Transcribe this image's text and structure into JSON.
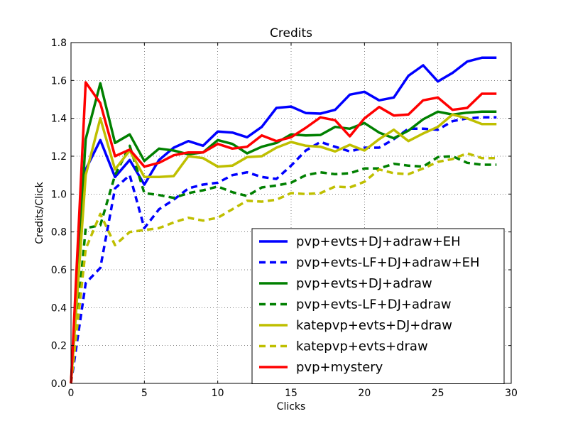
{
  "chart_data": {
    "type": "line",
    "title": "Credits",
    "xlabel": "Clicks",
    "ylabel": "Credits/Click",
    "xlim": [
      0,
      30
    ],
    "ylim": [
      0,
      1.8
    ],
    "xticks": [
      "0",
      "5",
      "10",
      "15",
      "20",
      "25",
      "30"
    ],
    "yticks": [
      "0.0",
      "0.2",
      "0.4",
      "0.6",
      "0.8",
      "1.0",
      "1.2",
      "1.4",
      "1.6",
      "1.8"
    ],
    "grid": true,
    "legend_position": "lower-right",
    "x": [
      0,
      1,
      2,
      3,
      4,
      5,
      6,
      7,
      8,
      9,
      10,
      11,
      12,
      13,
      14,
      15,
      16,
      17,
      18,
      19,
      20,
      21,
      22,
      23,
      24,
      25,
      26,
      27,
      28,
      29
    ],
    "series": [
      {
        "name": "pvp+evts+DJ+adraw+EH",
        "color": "#0000ff",
        "style": "solid",
        "values": [
          0.0,
          1.13,
          1.285,
          1.09,
          1.18,
          1.05,
          1.18,
          1.245,
          1.28,
          1.255,
          1.33,
          1.325,
          1.3,
          1.355,
          1.455,
          1.462,
          1.428,
          1.425,
          1.445,
          1.525,
          1.54,
          1.495,
          1.51,
          1.625,
          1.68,
          1.595,
          1.64,
          1.7,
          1.72,
          1.72
        ]
      },
      {
        "name": "pvp+evts-LF+DJ+adraw+EH",
        "color": "#0000ff",
        "style": "dashed",
        "values": [
          0.0,
          0.53,
          0.61,
          1.03,
          1.1,
          0.82,
          0.92,
          0.97,
          1.03,
          1.05,
          1.06,
          1.1,
          1.115,
          1.09,
          1.08,
          1.15,
          1.23,
          1.275,
          1.25,
          1.225,
          1.245,
          1.245,
          1.29,
          1.345,
          1.345,
          1.34,
          1.385,
          1.4,
          1.405,
          1.405
        ]
      },
      {
        "name": "pvp+evts+DJ+adraw",
        "color": "#008000",
        "style": "solid",
        "values": [
          0.0,
          1.29,
          1.585,
          1.27,
          1.315,
          1.175,
          1.24,
          1.23,
          1.21,
          1.22,
          1.285,
          1.265,
          1.215,
          1.25,
          1.27,
          1.315,
          1.31,
          1.312,
          1.355,
          1.345,
          1.375,
          1.325,
          1.295,
          1.335,
          1.395,
          1.435,
          1.42,
          1.43,
          1.435,
          1.435
        ]
      },
      {
        "name": "pvp+evts-LF+DJ+adraw",
        "color": "#008000",
        "style": "dashed",
        "values": [
          0.0,
          0.82,
          0.835,
          1.1,
          1.255,
          1.005,
          0.995,
          0.98,
          1.005,
          1.02,
          1.04,
          1.01,
          0.99,
          1.035,
          1.045,
          1.06,
          1.1,
          1.115,
          1.105,
          1.11,
          1.135,
          1.135,
          1.16,
          1.15,
          1.145,
          1.195,
          1.2,
          1.165,
          1.155,
          1.155
        ]
      },
      {
        "name": "katepvp+evts+DJ+draw",
        "color": "#bfbf00",
        "style": "solid",
        "values": [
          0.0,
          1.1,
          1.4,
          1.13,
          1.23,
          1.09,
          1.09,
          1.095,
          1.2,
          1.19,
          1.145,
          1.15,
          1.195,
          1.2,
          1.245,
          1.275,
          1.255,
          1.25,
          1.225,
          1.26,
          1.23,
          1.29,
          1.34,
          1.28,
          1.32,
          1.355,
          1.42,
          1.4,
          1.37,
          1.37
        ]
      },
      {
        "name": "katepvp+evts+draw",
        "color": "#bfbf00",
        "style": "dashed",
        "values": [
          0.0,
          0.71,
          0.895,
          0.73,
          0.8,
          0.81,
          0.82,
          0.85,
          0.875,
          0.86,
          0.875,
          0.92,
          0.965,
          0.96,
          0.97,
          1.005,
          1.0,
          1.005,
          1.04,
          1.035,
          1.065,
          1.13,
          1.11,
          1.105,
          1.135,
          1.17,
          1.185,
          1.215,
          1.19,
          1.19
        ]
      },
      {
        "name": "pvp+mystery",
        "color": "#ff0000",
        "style": "solid",
        "values": [
          0.0,
          1.59,
          1.48,
          1.2,
          1.235,
          1.145,
          1.165,
          1.205,
          1.22,
          1.22,
          1.265,
          1.24,
          1.25,
          1.31,
          1.28,
          1.3,
          1.35,
          1.405,
          1.39,
          1.305,
          1.4,
          1.46,
          1.415,
          1.42,
          1.495,
          1.51,
          1.445,
          1.455,
          1.53,
          1.53
        ]
      }
    ]
  }
}
